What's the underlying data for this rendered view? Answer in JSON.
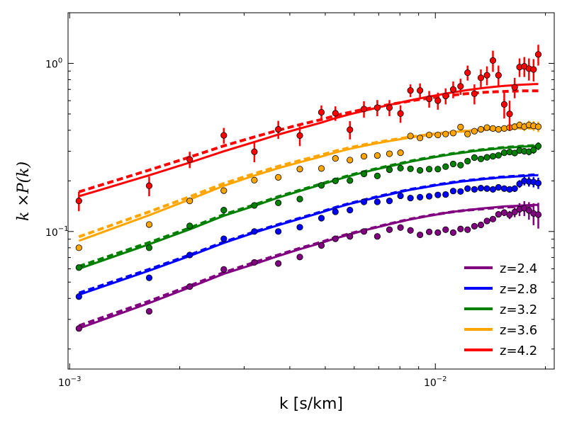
{
  "chart_data": {
    "type": "line",
    "xscale": "log",
    "yscale": "log",
    "xlim": [
      0.00099,
      0.02114
    ],
    "ylim": [
      0.0152,
      2.0
    ],
    "xlabel": "k [s/km]",
    "ylabel": "k ×P(k)",
    "legend_position": "bottom-right",
    "xticks": [
      {
        "value": 0.001,
        "base": "10",
        "exp": "−3"
      },
      {
        "value": 0.01,
        "base": "10",
        "exp": "−2"
      }
    ],
    "yticks": [
      {
        "value": 0.1,
        "base": "10",
        "exp": "−1"
      },
      {
        "value": 1.0,
        "base": "10",
        "exp": "0"
      }
    ],
    "x": [
      0.00106,
      0.00165,
      0.00213,
      0.00264,
      0.0032,
      0.00372,
      0.00426,
      0.00488,
      0.00533,
      0.00584,
      0.00638,
      0.00694,
      0.00749,
      0.00803,
      0.00855,
      0.00908,
      0.00962,
      0.01016,
      0.01067,
      0.01119,
      0.01172,
      0.01225,
      0.01279,
      0.01332,
      0.01384,
      0.01437,
      0.01488,
      0.01543,
      0.01596,
      0.01648,
      0.01699,
      0.01751,
      0.01803,
      0.01856,
      0.01912
    ],
    "series": [
      {
        "name": "z=2.4",
        "color": "#800080",
        "points": [
          0.0265,
          0.0335,
          0.047,
          0.0595,
          0.0655,
          0.0645,
          0.0705,
          0.0825,
          0.0905,
          0.0935,
          0.1,
          0.0935,
          0.1025,
          0.1055,
          0.1015,
          0.0955,
          0.0995,
          0.0985,
          0.1025,
          0.0985,
          0.1035,
          0.1025,
          0.1075,
          0.1095,
          0.1155,
          0.1185,
          0.1265,
          0.1295,
          0.1255,
          0.1305,
          0.1355,
          0.1375,
          0.1335,
          0.128,
          0.126
        ],
        "errors": [
          0,
          0,
          0,
          0,
          0,
          0,
          0,
          0,
          0,
          0,
          0,
          0,
          0,
          0,
          0,
          0,
          0,
          0,
          0,
          0,
          0,
          0,
          0,
          0,
          0,
          0,
          0.004,
          0.006,
          0.007,
          0.009,
          0.012,
          0.014,
          0.016,
          0.019,
          0.022
        ],
        "model_solid": [
          0.0265,
          0.0375,
          0.0465,
          0.056,
          0.064,
          0.0715,
          0.0785,
          0.0855,
          0.091,
          0.096,
          0.1015,
          0.106,
          0.1105,
          0.1145,
          0.118,
          0.121,
          0.124,
          0.1265,
          0.129,
          0.131,
          0.1325,
          0.134,
          0.1355,
          0.137,
          0.138,
          0.139,
          0.14,
          0.141,
          0.1415,
          0.142,
          0.1425,
          0.143,
          0.1435,
          0.144,
          0.144
        ],
        "model_dashed": [
          0.0275,
          0.0385,
          0.0475,
          0.057,
          0.0655,
          0.0725,
          0.0795,
          0.0865,
          0.092,
          0.097,
          0.102,
          0.1065,
          0.111,
          0.115,
          0.1185,
          0.1215,
          0.1245,
          0.127,
          0.129,
          0.131,
          0.1325,
          0.134,
          0.135,
          0.136,
          0.137,
          0.138,
          0.139,
          0.1395,
          0.14,
          0.1405,
          0.141,
          0.1415,
          0.142,
          0.1425,
          0.143
        ]
      },
      {
        "name": "z=2.8",
        "color": "#0000ff",
        "points": [
          0.041,
          0.053,
          0.0725,
          0.0905,
          0.1,
          0.1,
          0.106,
          0.12,
          0.131,
          0.134,
          0.15,
          0.15,
          0.152,
          0.163,
          0.158,
          0.16,
          0.162,
          0.165,
          0.166,
          0.174,
          0.173,
          0.18,
          0.178,
          0.181,
          0.18,
          0.178,
          0.183,
          0.18,
          0.178,
          0.18,
          0.192,
          0.2,
          0.198,
          0.197,
          0.194
        ],
        "errors": [
          0,
          0,
          0,
          0,
          0,
          0,
          0,
          0,
          0,
          0,
          0,
          0,
          0,
          0,
          0,
          0,
          0,
          0,
          0,
          0,
          0,
          0,
          0,
          0,
          0,
          0,
          0,
          0,
          0.006,
          0.008,
          0.01,
          0.012,
          0.013,
          0.014,
          0.015
        ],
        "model_solid": [
          0.042,
          0.0585,
          0.0715,
          0.0855,
          0.0985,
          0.109,
          0.119,
          0.13,
          0.138,
          0.146,
          0.153,
          0.16,
          0.166,
          0.172,
          0.177,
          0.181,
          0.185,
          0.189,
          0.192,
          0.195,
          0.198,
          0.2,
          0.202,
          0.204,
          0.206,
          0.207,
          0.209,
          0.21,
          0.211,
          0.212,
          0.213,
          0.214,
          0.215,
          0.216,
          0.216
        ],
        "model_dashed": [
          0.043,
          0.0595,
          0.0725,
          0.0865,
          0.0995,
          0.11,
          0.12,
          0.131,
          0.139,
          0.147,
          0.154,
          0.161,
          0.167,
          0.173,
          0.178,
          0.182,
          0.186,
          0.19,
          0.193,
          0.196,
          0.199,
          0.201,
          0.203,
          0.205,
          0.207,
          0.208,
          0.21,
          0.211,
          0.212,
          0.213,
          0.214,
          0.215,
          0.216,
          0.217,
          0.217
        ]
      },
      {
        "name": "z=3.2",
        "color": "#008000",
        "points": [
          0.061,
          0.08,
          0.108,
          0.134,
          0.143,
          0.148,
          0.156,
          0.188,
          0.2,
          0.201,
          0.22,
          0.214,
          0.233,
          0.238,
          0.236,
          0.231,
          0.235,
          0.235,
          0.243,
          0.252,
          0.248,
          0.262,
          0.275,
          0.27,
          0.276,
          0.28,
          0.284,
          0.294,
          0.297,
          0.293,
          0.303,
          0.3,
          0.298,
          0.305,
          0.322
        ],
        "errors": [
          0,
          0,
          0,
          0,
          0,
          0,
          0,
          0,
          0,
          0,
          0,
          0,
          0,
          0,
          0,
          0,
          0,
          0,
          0,
          0,
          0,
          0,
          0,
          0,
          0.006,
          0.007,
          0.008,
          0.009,
          0.01,
          0.011,
          0.012,
          0.013,
          0.014,
          0.015,
          0.017
        ],
        "model_solid": [
          0.06,
          0.084,
          0.103,
          0.124,
          0.142,
          0.159,
          0.174,
          0.19,
          0.202,
          0.214,
          0.225,
          0.235,
          0.244,
          0.252,
          0.26,
          0.267,
          0.273,
          0.279,
          0.284,
          0.289,
          0.293,
          0.297,
          0.301,
          0.304,
          0.307,
          0.309,
          0.312,
          0.314,
          0.316,
          0.317,
          0.319,
          0.32,
          0.321,
          0.322,
          0.322
        ],
        "model_dashed": [
          0.062,
          0.086,
          0.105,
          0.126,
          0.144,
          0.161,
          0.176,
          0.192,
          0.204,
          0.216,
          0.227,
          0.237,
          0.246,
          0.254,
          0.262,
          0.269,
          0.275,
          0.281,
          0.286,
          0.291,
          0.295,
          0.299,
          0.303,
          0.306,
          0.309,
          0.311,
          0.314,
          0.316,
          0.318,
          0.319,
          0.321,
          0.322,
          0.323,
          0.324,
          0.324
        ]
      },
      {
        "name": "z=3.6",
        "color": "#ffa500",
        "points": [
          0.08,
          0.11,
          0.152,
          0.175,
          0.202,
          0.21,
          0.235,
          0.237,
          0.272,
          0.266,
          0.28,
          0.283,
          0.29,
          0.294,
          0.37,
          0.36,
          0.375,
          0.375,
          0.38,
          0.385,
          0.418,
          0.38,
          0.395,
          0.405,
          0.415,
          0.41,
          0.405,
          0.41,
          0.415,
          0.42,
          0.43,
          0.42,
          0.43,
          0.425,
          0.42
        ],
        "errors": [
          0,
          0,
          0,
          0,
          0,
          0,
          0,
          0,
          0,
          0,
          0,
          0,
          0,
          0,
          0,
          0,
          0,
          0,
          0,
          0,
          0,
          0.012,
          0.013,
          0.014,
          0.015,
          0.016,
          0.017,
          0.018,
          0.019,
          0.02,
          0.022,
          0.024,
          0.026,
          0.028,
          0.03
        ],
        "model_solid": [
          0.088,
          0.125,
          0.155,
          0.187,
          0.215,
          0.238,
          0.258,
          0.279,
          0.295,
          0.31,
          0.323,
          0.335,
          0.345,
          0.354,
          0.362,
          0.369,
          0.375,
          0.381,
          0.386,
          0.39,
          0.394,
          0.397,
          0.4,
          0.402,
          0.404,
          0.406,
          0.408,
          0.409,
          0.41,
          0.411,
          0.412,
          0.413,
          0.413,
          0.414,
          0.414
        ],
        "model_dashed": [
          0.093,
          0.131,
          0.161,
          0.193,
          0.221,
          0.244,
          0.264,
          0.285,
          0.301,
          0.315,
          0.328,
          0.339,
          0.349,
          0.357,
          0.365,
          0.371,
          0.377,
          0.382,
          0.387,
          0.391,
          0.394,
          0.397,
          0.4,
          0.402,
          0.404,
          0.406,
          0.407,
          0.408,
          0.409,
          0.41,
          0.411,
          0.411,
          0.412,
          0.412,
          0.412
        ]
      },
      {
        "name": "z=4.2",
        "color": "#ff0000",
        "points": [
          0.152,
          0.187,
          0.268,
          0.373,
          0.298,
          0.405,
          0.372,
          0.512,
          0.505,
          0.403,
          0.535,
          0.545,
          0.545,
          0.503,
          0.69,
          0.69,
          0.615,
          0.6,
          0.64,
          0.7,
          0.73,
          0.88,
          0.66,
          0.82,
          0.85,
          1.04,
          0.85,
          0.57,
          0.5,
          0.72,
          0.95,
          0.96,
          0.93,
          0.92,
          1.13
        ],
        "errors": [
          0.02,
          0.025,
          0.03,
          0.04,
          0.04,
          0.05,
          0.05,
          0.05,
          0.05,
          0.05,
          0.06,
          0.06,
          0.06,
          0.06,
          0.06,
          0.07,
          0.07,
          0.07,
          0.07,
          0.08,
          0.08,
          0.09,
          0.09,
          0.1,
          0.11,
          0.15,
          0.12,
          0.1,
          0.1,
          0.1,
          0.12,
          0.13,
          0.14,
          0.14,
          0.16
        ],
        "model_solid": [
          0.162,
          0.216,
          0.257,
          0.3,
          0.341,
          0.377,
          0.41,
          0.444,
          0.472,
          0.498,
          0.522,
          0.545,
          0.566,
          0.585,
          0.603,
          0.619,
          0.634,
          0.648,
          0.661,
          0.673,
          0.684,
          0.694,
          0.703,
          0.711,
          0.718,
          0.724,
          0.729,
          0.734,
          0.738,
          0.742,
          0.745,
          0.748,
          0.75,
          0.752,
          0.754
        ],
        "model_dashed": [
          0.172,
          0.232,
          0.277,
          0.323,
          0.365,
          0.4,
          0.432,
          0.463,
          0.489,
          0.512,
          0.533,
          0.552,
          0.569,
          0.584,
          0.598,
          0.61,
          0.621,
          0.631,
          0.64,
          0.648,
          0.655,
          0.661,
          0.666,
          0.67,
          0.674,
          0.677,
          0.679,
          0.681,
          0.683,
          0.684,
          0.685,
          0.686,
          0.686,
          0.687,
          0.687
        ]
      }
    ]
  }
}
